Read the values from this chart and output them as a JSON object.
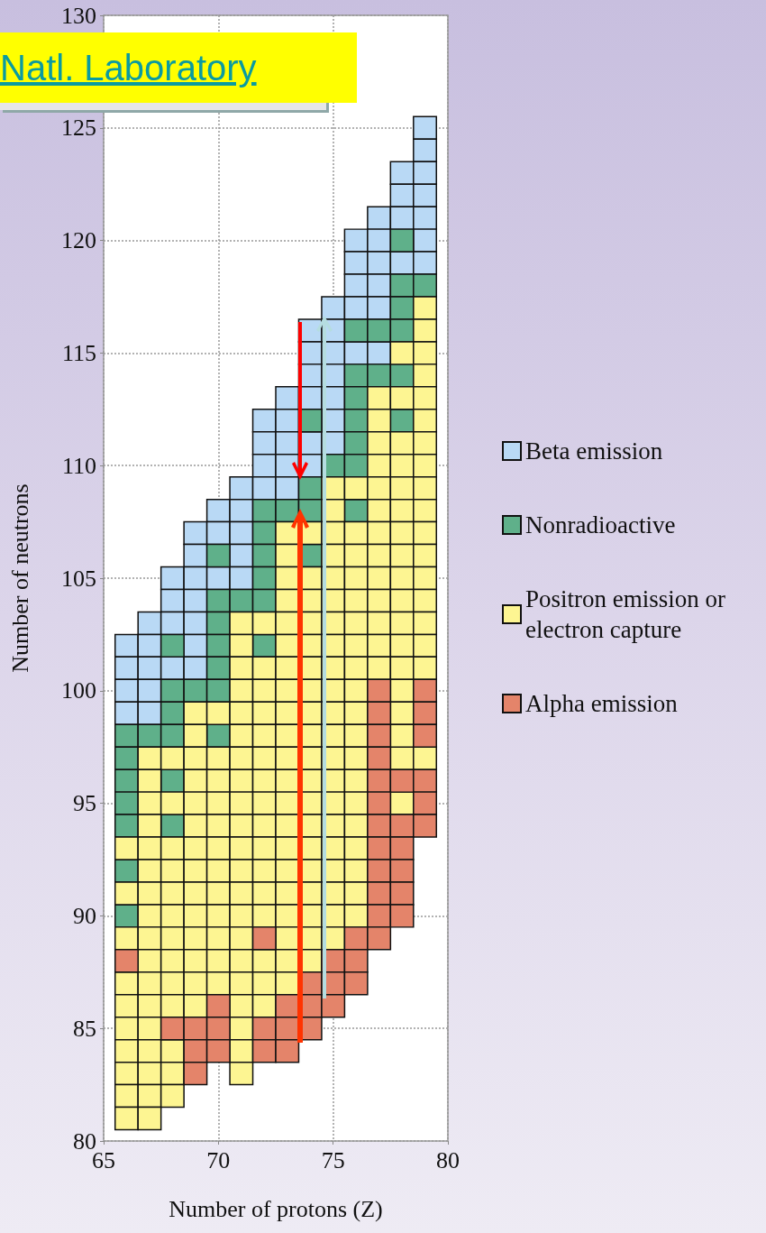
{
  "chart_data": {
    "type": "scatter",
    "xlabel": "Number of protons (Z)",
    "ylabel": "Number of neutrons",
    "xlim": [
      65,
      80
    ],
    "xticks": [
      65,
      70,
      75,
      80
    ],
    "ylim": [
      80,
      130
    ],
    "yticks": [
      80,
      85,
      90,
      95,
      100,
      105,
      110,
      115,
      120,
      125,
      130
    ],
    "grid": true,
    "legend": "right",
    "marker": "square",
    "annotations": [
      "Natl. Laboratory"
    ],
    "series": [
      {
        "name": "Beta emission",
        "color": "#b9d9f5",
        "x": [
          79,
          79,
          78,
          79,
          78,
          79,
          77,
          78,
          79,
          76,
          77,
          79,
          76,
          77,
          78,
          79,
          76,
          77,
          75,
          76,
          77,
          74,
          75,
          74,
          75,
          76,
          77,
          74,
          75,
          73,
          74,
          75,
          72,
          73,
          75,
          72,
          73,
          74,
          75,
          72,
          73,
          74,
          71,
          72,
          73,
          70,
          71,
          69,
          70,
          71,
          69,
          71,
          68,
          69,
          70,
          71,
          68,
          69,
          67,
          68,
          69,
          66,
          67,
          69,
          66,
          67,
          68,
          69,
          66,
          67,
          66,
          67
        ],
        "values": [
          125,
          124,
          123,
          123,
          122,
          122,
          121,
          121,
          121,
          120,
          120,
          120,
          119,
          119,
          119,
          119,
          118,
          118,
          117,
          117,
          117,
          116,
          116,
          115,
          115,
          115,
          115,
          114,
          114,
          113,
          113,
          113,
          112,
          112,
          112,
          111,
          111,
          111,
          111,
          110,
          110,
          110,
          109,
          109,
          109,
          108,
          108,
          107,
          107,
          107,
          106,
          106,
          105,
          105,
          105,
          105,
          104,
          104,
          103,
          103,
          103,
          102,
          102,
          102,
          101,
          101,
          101,
          101,
          100,
          100,
          99,
          99
        ]
      },
      {
        "name": "Nonradioactive",
        "color": "#5fb08a",
        "x": [
          78,
          78,
          79,
          78,
          76,
          77,
          78,
          76,
          77,
          78,
          76,
          74,
          76,
          78,
          76,
          75,
          76,
          74,
          72,
          73,
          74,
          76,
          72,
          70,
          72,
          74,
          72,
          70,
          71,
          72,
          70,
          68,
          70,
          72,
          70,
          68,
          69,
          70,
          68,
          66,
          67,
          68,
          70,
          66,
          66,
          68,
          66,
          66,
          68,
          66,
          66
        ],
        "values": [
          120,
          118,
          118,
          117,
          116,
          116,
          116,
          114,
          114,
          114,
          113,
          112,
          112,
          112,
          111,
          110,
          110,
          109,
          108,
          108,
          108,
          108,
          107,
          106,
          106,
          106,
          105,
          104,
          104,
          104,
          103,
          102,
          102,
          102,
          101,
          100,
          100,
          100,
          99,
          98,
          98,
          98,
          98,
          97,
          96,
          96,
          95,
          94,
          94,
          92,
          90
        ]
      },
      {
        "name": "Positron emission or electron capture",
        "color": "#fdf592",
        "x": [
          79,
          79,
          78,
          79,
          79,
          77,
          78,
          79,
          77,
          79,
          77,
          78,
          79,
          77,
          78,
          79,
          75,
          76,
          77,
          78,
          79,
          75,
          77,
          78,
          79,
          73,
          74,
          75,
          76,
          77,
          78,
          79,
          73,
          75,
          76,
          77,
          78,
          79,
          73,
          74,
          75,
          76,
          77,
          78,
          79,
          73,
          74,
          75,
          76,
          77,
          78,
          79,
          71,
          72,
          73,
          74,
          75,
          76,
          77,
          78,
          79,
          71,
          73,
          74,
          75,
          76,
          77,
          78,
          79,
          71,
          72,
          73,
          74,
          75,
          76,
          77,
          78,
          79,
          71,
          72,
          73,
          74,
          75,
          76,
          69,
          70,
          71,
          72,
          73,
          74,
          75,
          76,
          69,
          71,
          72,
          73,
          74,
          75,
          76,
          67,
          68,
          69,
          70,
          71,
          72,
          73,
          74,
          75,
          76,
          78,
          79,
          67,
          69,
          70,
          71,
          72,
          73,
          74,
          75,
          76,
          67,
          68,
          69,
          70,
          71,
          72,
          73,
          74,
          75,
          76,
          78,
          67,
          69,
          70,
          71,
          72,
          73,
          74,
          75,
          76,
          66,
          67,
          68,
          69,
          70,
          71,
          72,
          73,
          74,
          75,
          76,
          67,
          68,
          69,
          70,
          71,
          72,
          73,
          74,
          75,
          76,
          66,
          67,
          68,
          69,
          70,
          71,
          72,
          73,
          74,
          75,
          76,
          67,
          68,
          69,
          70,
          71,
          72,
          73,
          74,
          75,
          76,
          66,
          67,
          68,
          69,
          70,
          71,
          73,
          74,
          75,
          67,
          68,
          69,
          70,
          71,
          72,
          73,
          74,
          66,
          67,
          68,
          69,
          70,
          71,
          72,
          73,
          66,
          67,
          68,
          69,
          71,
          72,
          66,
          67,
          71,
          66,
          67,
          68,
          71,
          66,
          67,
          68,
          71,
          66,
          67,
          68,
          66,
          67,
          78,
          78,
          78
        ],
        "values": [
          117,
          116,
          115,
          115,
          114,
          113,
          113,
          113,
          112,
          112,
          111,
          111,
          111,
          110,
          110,
          110,
          109,
          109,
          109,
          109,
          109,
          108,
          108,
          108,
          108,
          107,
          107,
          107,
          107,
          107,
          107,
          107,
          106,
          106,
          106,
          106,
          106,
          106,
          105,
          105,
          105,
          105,
          105,
          105,
          105,
          104,
          104,
          104,
          104,
          104,
          104,
          104,
          103,
          103,
          103,
          103,
          103,
          103,
          103,
          103,
          103,
          102,
          102,
          102,
          102,
          102,
          102,
          102,
          102,
          101,
          101,
          101,
          101,
          101,
          101,
          101,
          101,
          101,
          100,
          100,
          100,
          100,
          100,
          100,
          99,
          99,
          99,
          99,
          99,
          99,
          99,
          99,
          98,
          98,
          98,
          98,
          98,
          98,
          98,
          97,
          97,
          97,
          97,
          97,
          97,
          97,
          97,
          97,
          97,
          97,
          97,
          96,
          96,
          96,
          96,
          96,
          96,
          96,
          96,
          96,
          95,
          95,
          95,
          95,
          95,
          95,
          95,
          95,
          95,
          95,
          95,
          94,
          94,
          94,
          94,
          94,
          94,
          94,
          94,
          94,
          93,
          93,
          93,
          93,
          93,
          93,
          93,
          93,
          93,
          93,
          93,
          92,
          92,
          92,
          92,
          92,
          92,
          92,
          92,
          92,
          92,
          91,
          91,
          91,
          91,
          91,
          91,
          91,
          91,
          91,
          91,
          91,
          90,
          90,
          90,
          90,
          90,
          90,
          90,
          90,
          90,
          90,
          89,
          89,
          89,
          89,
          89,
          89,
          89,
          89,
          89,
          88,
          88,
          88,
          88,
          88,
          88,
          88,
          88,
          87,
          87,
          87,
          87,
          87,
          87,
          87,
          87,
          86,
          86,
          86,
          86,
          86,
          86,
          85,
          85,
          85,
          84,
          84,
          84,
          84,
          83,
          83,
          83,
          83,
          82,
          82,
          82,
          81,
          81,
          100,
          99,
          98
        ]
      },
      {
        "name": "Alpha emission",
        "color": "#e4846a",
        "x": [
          77,
          79,
          77,
          79,
          77,
          79,
          77,
          77,
          78,
          79,
          77,
          79,
          77,
          78,
          79,
          77,
          78,
          77,
          78,
          77,
          78,
          77,
          78,
          72,
          76,
          77,
          66,
          75,
          76,
          74,
          75,
          76,
          70,
          73,
          74,
          75,
          68,
          69,
          70,
          72,
          73,
          74,
          69,
          70,
          72,
          73,
          69
        ],
        "values": [
          100,
          100,
          99,
          99,
          98,
          98,
          97,
          96,
          96,
          96,
          95,
          95,
          94,
          94,
          94,
          93,
          93,
          92,
          92,
          91,
          91,
          90,
          90,
          89,
          89,
          89,
          88,
          88,
          88,
          87,
          87,
          87,
          86,
          86,
          86,
          86,
          85,
          85,
          85,
          85,
          85,
          85,
          84,
          84,
          84,
          84,
          83
        ]
      }
    ]
  }
}
